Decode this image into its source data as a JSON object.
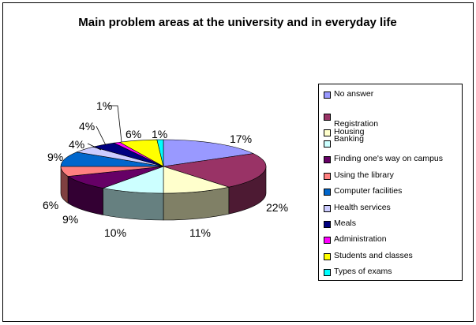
{
  "chart_data": {
    "type": "pie",
    "title": "Main problem areas at the university and in everyday life",
    "categories": [
      "No answer",
      "Registration",
      "Housing",
      "Banking",
      "Finding one's way on campus",
      "Using the library",
      "Computer facilities",
      "Health services",
      "Meals",
      "Administration",
      "Students and classes",
      "Types of exams"
    ],
    "values": [
      17,
      22,
      11,
      10,
      9,
      6,
      9,
      4,
      4,
      1,
      6,
      1
    ],
    "value_labels": [
      "17%",
      "22%",
      "11%",
      "10%",
      "9%",
      "6%",
      "9%",
      "4%",
      "4%",
      "1%",
      "6%",
      "1%"
    ],
    "colors": [
      "#9999FF",
      "#993366",
      "#FFFFCC",
      "#CCFFFF",
      "#660066",
      "#FF8080",
      "#0066CC",
      "#CCCCFF",
      "#000080",
      "#FF00FF",
      "#FFFF00",
      "#00FFFF"
    ],
    "legend_position": "right",
    "style": "3d-pie"
  }
}
